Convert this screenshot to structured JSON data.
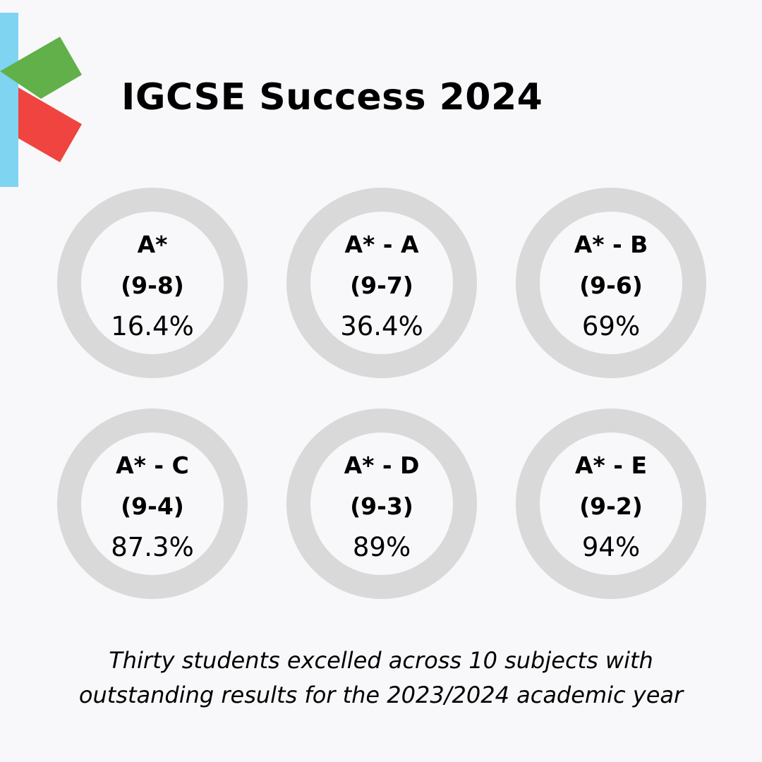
{
  "title": "IGCSE Success 2024",
  "colors": {
    "accent_green": "#62b04a",
    "track_gray": "#d9d9d9",
    "logo_blue": "#7fd4f1",
    "logo_red": "#ef4440",
    "background": "#f8f8fa"
  },
  "rings": [
    {
      "grade": "A*",
      "range": "(9-8)",
      "value_label": "16.4%"
    },
    {
      "grade": "A* - A",
      "range": "(9-7)",
      "value_label": "36.4%"
    },
    {
      "grade": "A* - B",
      "range": "(9-6)",
      "value_label": "69%"
    },
    {
      "grade": "A* - C",
      "range": "(9-4)",
      "value_label": "87.3%"
    },
    {
      "grade": "A* - D",
      "range": "(9-3)",
      "value_label": "89%"
    },
    {
      "grade": "A* - E",
      "range": "(9-2)",
      "value_label": "94%"
    }
  ],
  "caption": {
    "line1": "Thirty students excelled across 10 subjects with",
    "line2": "outstanding results for the 2023/2024 academic year"
  },
  "chart_data": {
    "type": "pie",
    "subtype": "progress-rings",
    "title": "IGCSE Success 2024",
    "categories": [
      "A* (9-8)",
      "A* - A (9-7)",
      "A* - B (9-6)",
      "A* - C (9-4)",
      "A* - D (9-3)",
      "A* - E (9-2)"
    ],
    "values": [
      16.4,
      36.4,
      69,
      87.3,
      89,
      94
    ],
    "unit": "%",
    "max": 100,
    "layout": "2 rows x 3 columns",
    "legend": "none",
    "annotation": "Thirty students excelled across 10 subjects with outstanding results for the 2023/2024 academic year"
  }
}
